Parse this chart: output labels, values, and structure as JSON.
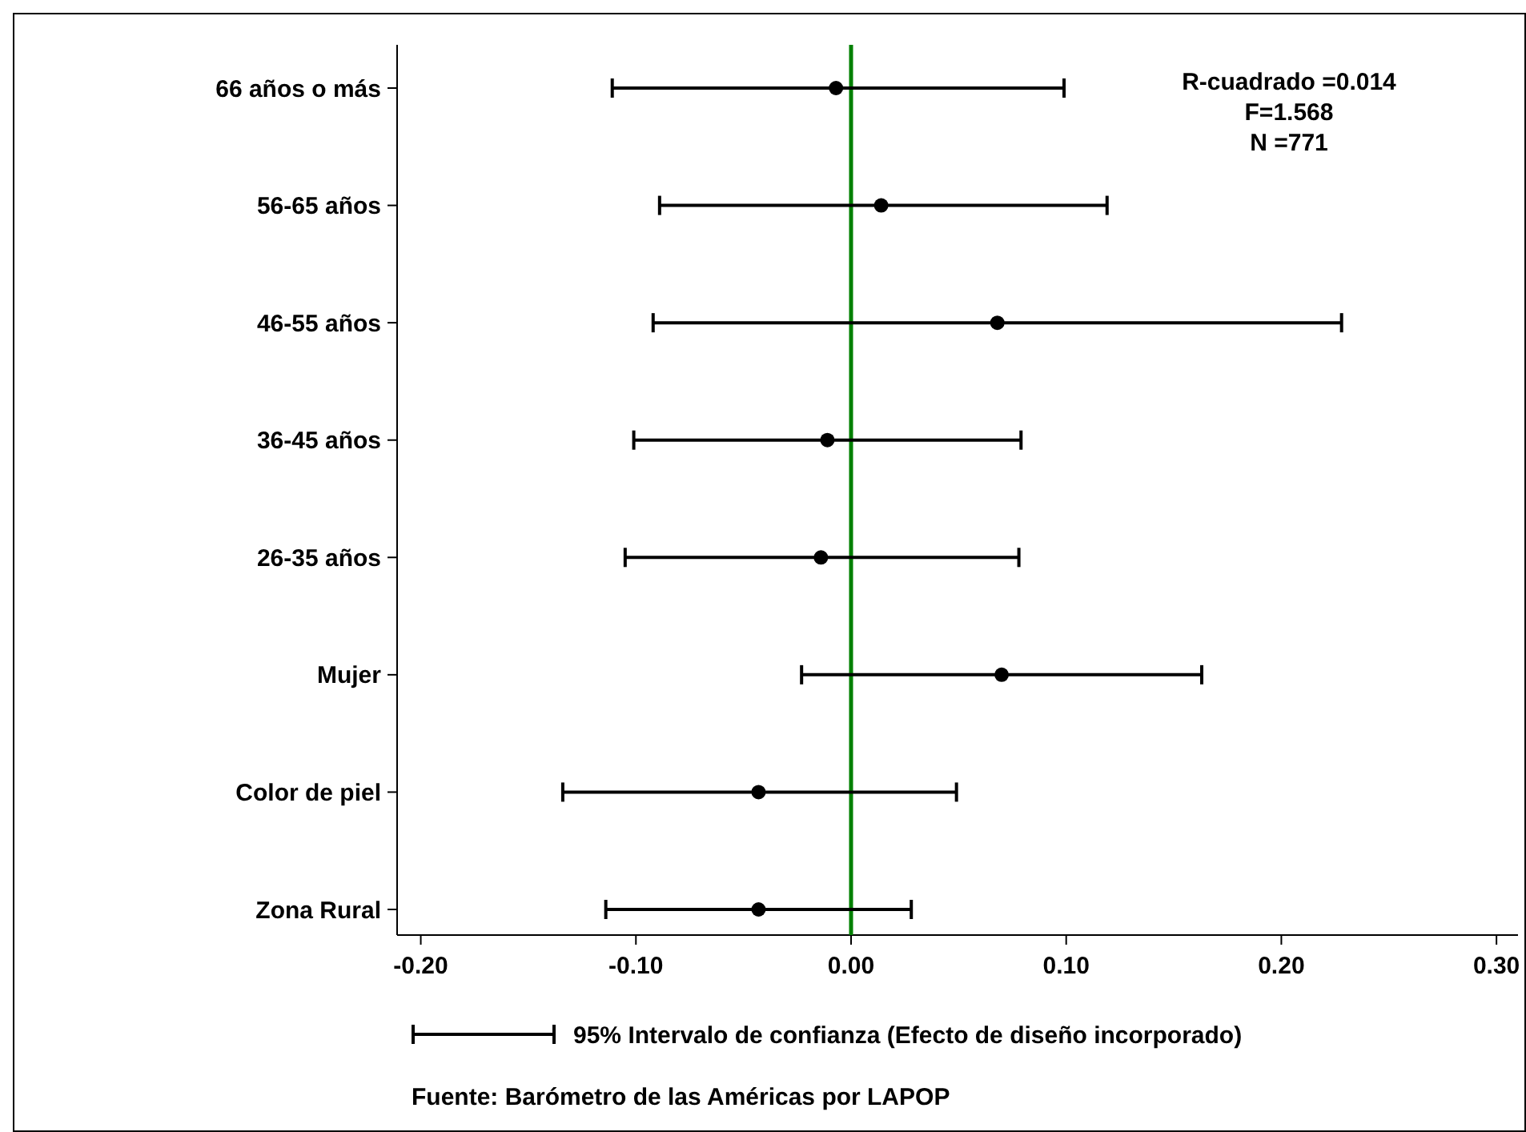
{
  "chart_data": {
    "type": "scatter",
    "orientation": "horizontal",
    "categories": [
      "66 años o más",
      "56-65 años",
      "46-55 años",
      "36-45 años",
      "26-35 años",
      "Mujer",
      "Color de piel",
      "Zona Rural"
    ],
    "series": [
      {
        "name": "95% Intervalo de confianza (Efecto de diseño incorporado)",
        "color": "#000000",
        "values": [
          -0.007,
          0.014,
          0.068,
          -0.011,
          -0.014,
          0.07,
          -0.043,
          -0.043
        ],
        "errors": [
          [
            -0.111,
            0.099
          ],
          [
            -0.089,
            0.119
          ],
          [
            -0.092,
            0.228
          ],
          [
            -0.101,
            0.079
          ],
          [
            -0.105,
            0.078
          ],
          [
            -0.023,
            0.163
          ],
          [
            -0.134,
            0.049
          ],
          [
            -0.114,
            0.028
          ]
        ]
      }
    ],
    "xlim": [
      -0.211,
      0.31
    ],
    "xticks": [
      {
        "value": -0.2,
        "label": "-0.20"
      },
      {
        "value": -0.1,
        "label": "-0.10"
      },
      {
        "value": 0,
        "label": "0.00"
      },
      {
        "value": 0.1,
        "label": "0.10"
      },
      {
        "value": 0.2,
        "label": "0.20"
      },
      {
        "value": 0.3,
        "label": "0.30"
      }
    ],
    "ref_lines": [
      {
        "axis": "x",
        "value": 0,
        "color": "#008000"
      }
    ],
    "marker": "circle",
    "legend": "bottom",
    "grid": false,
    "annotations": [
      "R-cuadrado =0.014",
      "F=1.568",
      "N =771",
      "Fuente: Barómetro de las Américas por LAPOP"
    ]
  }
}
